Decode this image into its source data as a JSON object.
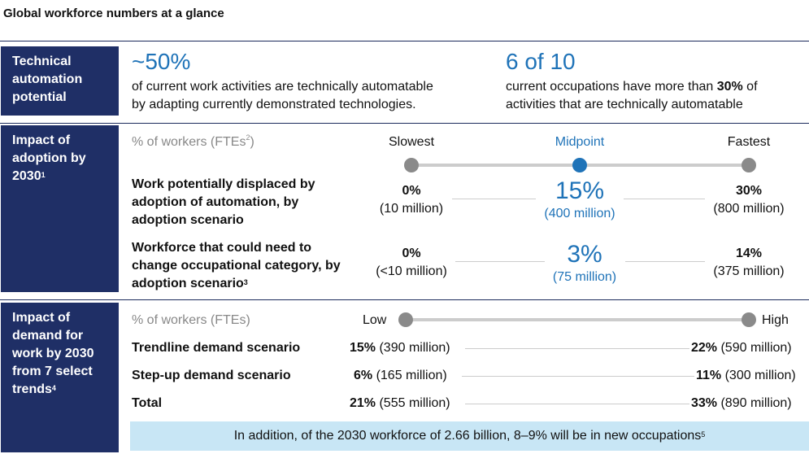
{
  "title": "Global workforce numbers at a glance",
  "row1": {
    "label": "Technical automation potential",
    "stat1": {
      "value": "~50%",
      "text1": "of current work activities are technically automatable",
      "text2": "by adapting currently demonstrated technologies."
    },
    "stat2": {
      "value": "6 of 10",
      "text1a": "current occupations have more than ",
      "text1b": "30%",
      "text1c": " of",
      "text2": "activities that are technically automatable"
    }
  },
  "row2": {
    "label": "Impact of adoption by 2030",
    "label_sup": "1",
    "metric": "% of workers (FTEs",
    "metric_sup": "2",
    "metric_end": ")",
    "scenarios": [
      "Slowest",
      "Midpoint",
      "Fastest"
    ],
    "rows": [
      {
        "label": "Work potentially displaced by adoption of automation, by adoption scenario",
        "label_sup": "",
        "slow_pct": "0%",
        "slow_abs": "(10 million)",
        "mid_pct": "15%",
        "mid_abs": "(400 million)",
        "fast_pct": "30%",
        "fast_abs": "(800 million)"
      },
      {
        "label": "Workforce that could need to change occupational category, by adoption scenario",
        "label_sup": "3",
        "slow_pct": "0%",
        "slow_abs": "(<10 million)",
        "mid_pct": "3%",
        "mid_abs": "(75 million)",
        "fast_pct": "14%",
        "fast_abs": "(375 million)"
      }
    ]
  },
  "row3": {
    "label": "Impact of demand for work by 2030 from 7 select trends",
    "label_sup": "4",
    "metric": "% of workers (FTEs)",
    "low": "Low",
    "high": "High",
    "rows": [
      {
        "label": "Trendline demand scenario",
        "low_pct": "15%",
        "low_abs": " (390 million)",
        "high_pct": "22%",
        "high_abs": " (590 million)"
      },
      {
        "label": "Step-up demand scenario",
        "low_pct": "6%",
        "low_abs": " (165 million)",
        "high_pct": "11%",
        "high_abs": " (300 million)"
      },
      {
        "label": "Total",
        "low_pct": "21%",
        "low_abs": " (555 million)",
        "high_pct": "33%",
        "high_abs": " (890 million)"
      }
    ]
  },
  "banner": {
    "text": "In addition, of the 2030 workforce of 2.66 billion, 8–9% will be in new occupations",
    "sup": "5"
  },
  "colors": {
    "navy": "#1f2f66",
    "accent_blue": "#1f73b8",
    "banner": "#c8e6f5",
    "gray_dot": "#8a8a8a"
  },
  "chart_data": {
    "type": "table",
    "title": "Global workforce numbers at a glance",
    "adoption_scenarios": [
      "Slowest",
      "Midpoint",
      "Fastest"
    ],
    "displaced_pct": [
      0,
      15,
      30
    ],
    "displaced_millions": [
      10,
      400,
      800
    ],
    "change_occupation_pct": [
      0,
      3,
      14
    ],
    "change_occupation_millions": [
      "<10",
      75,
      375
    ],
    "demand_scenarios": [
      "Trendline demand scenario",
      "Step-up demand scenario",
      "Total"
    ],
    "demand_low_pct": [
      15,
      6,
      21
    ],
    "demand_low_millions": [
      390,
      165,
      555
    ],
    "demand_high_pct": [
      22,
      11,
      33
    ],
    "demand_high_millions": [
      590,
      300,
      890
    ]
  }
}
